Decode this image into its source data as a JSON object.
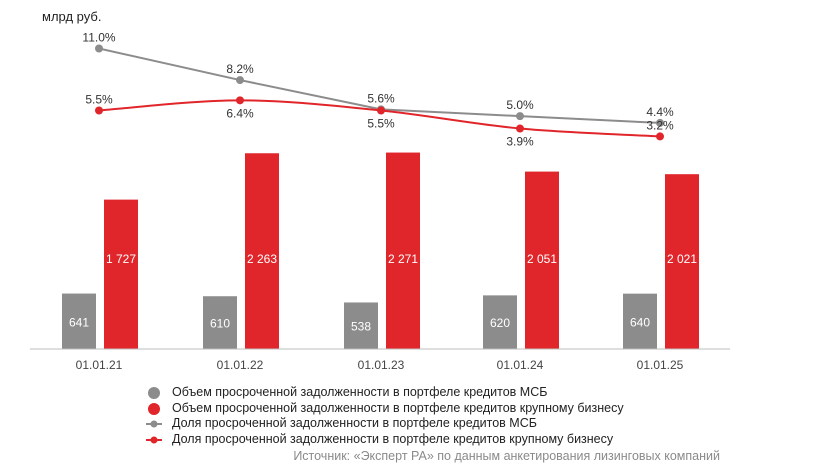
{
  "unit_label": "млрд руб.",
  "source": "Источник: «Эксперт РА» по данным анкетирования лизинговых компаний",
  "colors": {
    "gray": "#8c8c8c",
    "red": "#e1262b",
    "axis": "#bdbdbd",
    "bar_text": "#ffffff",
    "label_text": "#333333"
  },
  "legend": [
    {
      "label": "Объем просроченной задолженности в портфеле кредитов МСБ",
      "marker": "dot",
      "color": "#8c8c8c"
    },
    {
      "label": "Объем просроченной задолженности в портфеле кредитов крупному бизнесу",
      "marker": "dot",
      "color": "#e1262b"
    },
    {
      "label": "Доля просроченной задолженности в портфеле кредитов МСБ",
      "marker": "line-dot",
      "color": "#8c8c8c"
    },
    {
      "label": "Доля просроченной задолженности в портфеле кредитов крупному бизнесу",
      "marker": "line-dot",
      "color": "#e1262b"
    }
  ],
  "chart_data": {
    "type": "bar",
    "categories": [
      "01.01.21",
      "01.01.22",
      "01.01.23",
      "01.01.24",
      "01.01.25"
    ],
    "bar_series": [
      {
        "name": "Объем просроченной задолженности в портфеле кредитов МСБ",
        "color": "#8c8c8c",
        "values": [
          641,
          610,
          538,
          620,
          640
        ],
        "labels": [
          "641",
          "610",
          "538",
          "620",
          "640"
        ]
      },
      {
        "name": "Объем просроченной задолженности в портфеле кредитов крупному бизнесу",
        "color": "#e1262b",
        "values": [
          1727,
          2263,
          2271,
          2051,
          2021
        ],
        "labels": [
          "1 727",
          "2 263",
          "2 271",
          "2 051",
          "2 021"
        ]
      }
    ],
    "line_series": [
      {
        "name": "Доля просроченной задолженности в портфеле кредитов МСБ",
        "color": "#8c8c8c",
        "values": [
          11.0,
          8.2,
          5.6,
          5.0,
          4.4
        ],
        "labels": [
          "11.0%",
          "8.2%",
          "5.6%",
          "5.0%",
          "4.4%"
        ],
        "label_positions": [
          "above",
          "above",
          "above",
          "above",
          "above"
        ]
      },
      {
        "name": "Доля просроченной задолженности в портфеле кредитов крупному бизнесу",
        "color": "#e1262b",
        "values": [
          5.5,
          6.4,
          5.5,
          3.9,
          3.2
        ],
        "labels": [
          "5.5%",
          "6.4%",
          "5.5%",
          "3.9%",
          "3.2%"
        ],
        "label_positions": [
          "above",
          "below",
          "below",
          "below",
          "above"
        ]
      }
    ],
    "bar_axis_unit": "млрд руб.",
    "ylim_bars": [
      0,
      2300
    ],
    "ylim_lines_percent": [
      3.2,
      11.0
    ],
    "grid": false,
    "legend_position": "bottom-left"
  }
}
